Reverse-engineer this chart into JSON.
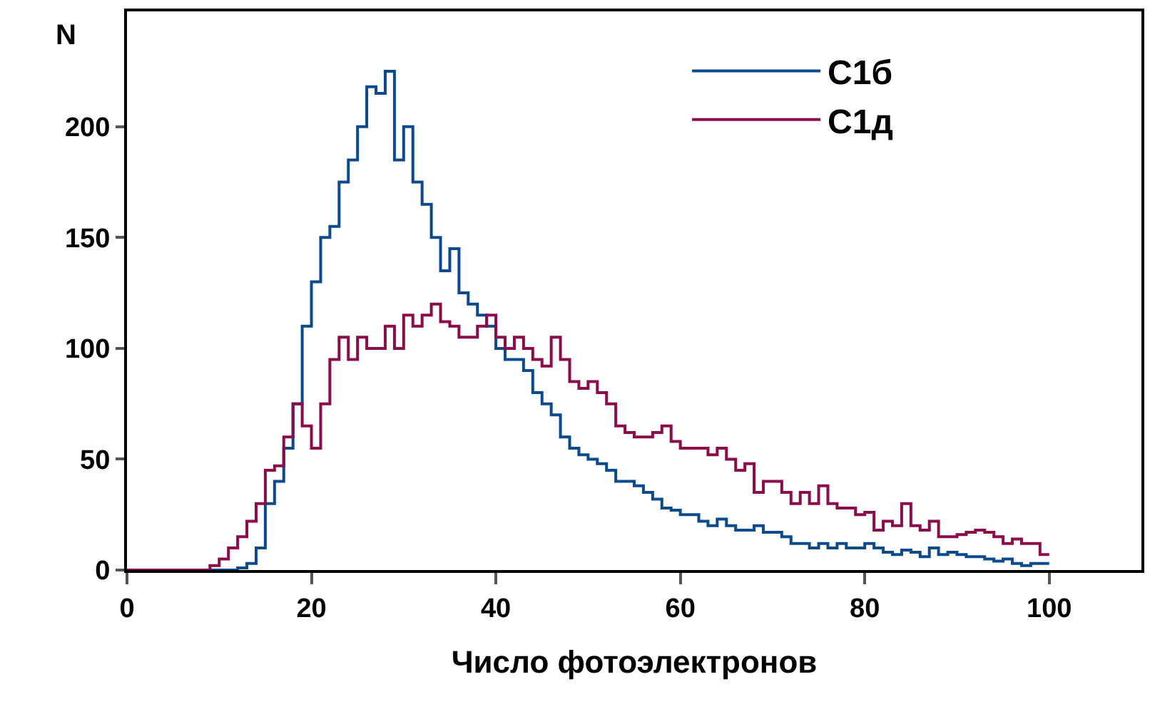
{
  "chart_data": {
    "type": "step",
    "xlabel": "Число фотоэлектронов",
    "ylabel": "N",
    "x": [
      0,
      1,
      2,
      3,
      4,
      5,
      6,
      7,
      8,
      9,
      10,
      11,
      12,
      13,
      14,
      15,
      16,
      17,
      18,
      19,
      20,
      21,
      22,
      23,
      24,
      25,
      26,
      27,
      28,
      29,
      30,
      31,
      32,
      33,
      34,
      35,
      36,
      37,
      38,
      39,
      40,
      41,
      42,
      43,
      44,
      45,
      46,
      47,
      48,
      49,
      50,
      51,
      52,
      53,
      54,
      55,
      56,
      57,
      58,
      59,
      60,
      61,
      62,
      63,
      64,
      65,
      66,
      67,
      68,
      69,
      70,
      71,
      72,
      73,
      74,
      75,
      76,
      77,
      78,
      79,
      80,
      81,
      82,
      83,
      84,
      85,
      86,
      87,
      88,
      89,
      90,
      91,
      92,
      93,
      94,
      95,
      96,
      97,
      98,
      99,
      100
    ],
    "series": [
      {
        "name": "С1б",
        "color": "#0b4a8c",
        "values": [
          null,
          null,
          null,
          null,
          null,
          null,
          null,
          null,
          0,
          0,
          0,
          0,
          1,
          3,
          10,
          30,
          40,
          55,
          75,
          110,
          130,
          150,
          155,
          175,
          185,
          200,
          218,
          215,
          225,
          185,
          200,
          175,
          165,
          150,
          135,
          145,
          125,
          120,
          115,
          110,
          100,
          95,
          95,
          90,
          80,
          75,
          70,
          60,
          55,
          52,
          50,
          48,
          45,
          40,
          40,
          38,
          35,
          32,
          28,
          27,
          25,
          25,
          22,
          20,
          23,
          20,
          18,
          18,
          20,
          17,
          17,
          15,
          12,
          12,
          10,
          12,
          10,
          12,
          10,
          10,
          12,
          10,
          8,
          7,
          9,
          8,
          6,
          10,
          7,
          8,
          7,
          6,
          6,
          5,
          4,
          5,
          3,
          2,
          3,
          3,
          3
        ]
      },
      {
        "name": "С1д",
        "color": "#8c0b4a",
        "values": [
          0,
          0,
          0,
          0,
          0,
          0,
          0,
          0,
          0,
          2,
          5,
          10,
          15,
          22,
          30,
          45,
          47,
          60,
          75,
          65,
          55,
          75,
          95,
          105,
          95,
          105,
          100,
          100,
          110,
          100,
          115,
          110,
          115,
          120,
          112,
          110,
          105,
          105,
          110,
          115,
          105,
          100,
          105,
          100,
          95,
          92,
          105,
          95,
          85,
          82,
          85,
          80,
          75,
          65,
          62,
          60,
          60,
          62,
          65,
          58,
          55,
          55,
          55,
          52,
          55,
          50,
          45,
          48,
          35,
          40,
          40,
          35,
          30,
          35,
          30,
          38,
          30,
          28,
          28,
          25,
          26,
          18,
          22,
          20,
          30,
          20,
          18,
          22,
          15,
          15,
          16,
          17,
          18,
          17,
          15,
          12,
          14,
          12,
          12,
          7,
          7
        ]
      }
    ],
    "xlim": [
      0,
      110
    ],
    "xticks": [
      0,
      20,
      40,
      60,
      80,
      100
    ],
    "ylim": [
      0,
      252
    ],
    "yticks": [
      0,
      50,
      100,
      150,
      200
    ],
    "grid": false,
    "legend": "top right",
    "line_style": "solid",
    "marker": "none"
  }
}
